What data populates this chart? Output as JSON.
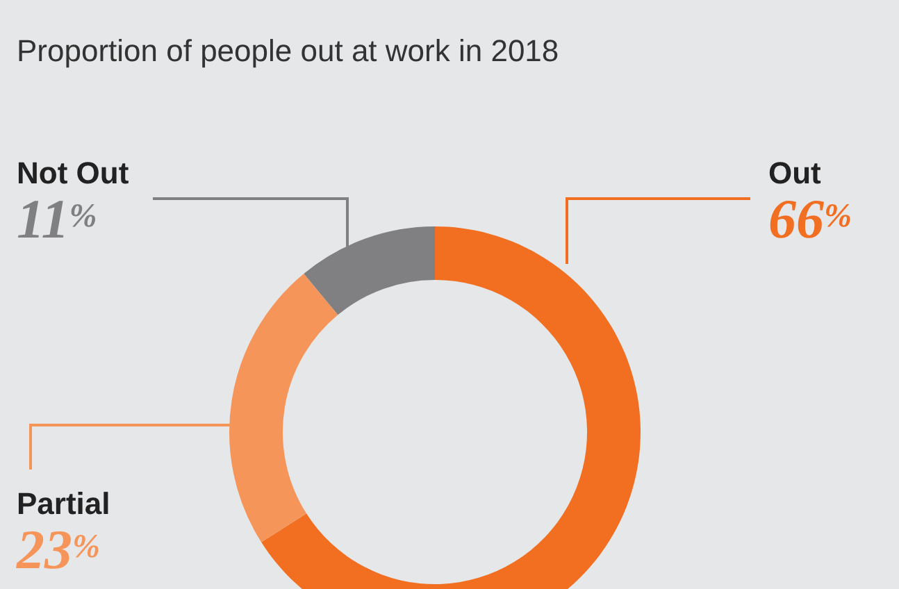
{
  "chart_data": {
    "type": "donut",
    "title": "Proportion of people out at work in 2018",
    "categories": [
      "Out",
      "Partial",
      "Not Out"
    ],
    "values": [
      66,
      23,
      11
    ],
    "colors": [
      "#f26f22",
      "#f6955a",
      "#808083"
    ],
    "value_labels": [
      "66$^{%}$",
      "23$^{%}$",
      "11$^{%}$"
    ],
    "legend": false
  }
}
